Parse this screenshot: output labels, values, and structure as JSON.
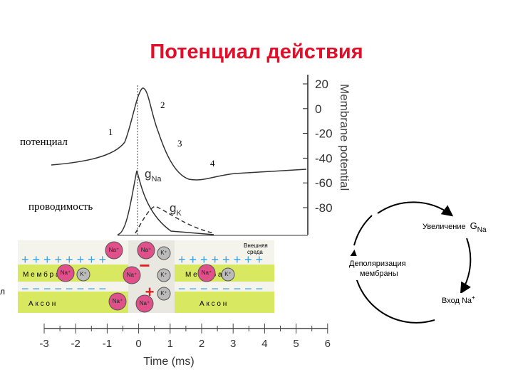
{
  "title": "Потенциал действия",
  "plot": {
    "y_axis_label": "Membrane potential",
    "y_ticks": [
      20,
      0,
      -20,
      -40,
      -60,
      -80
    ],
    "x_axis_label": "Time (ms)",
    "x_ticks": [
      -3,
      -2,
      -1,
      0,
      1,
      2,
      3,
      4,
      5,
      6
    ],
    "phase_labels": [
      "1",
      "2",
      "3",
      "4"
    ],
    "potential_label": "потенциал",
    "conductance_label": "проводимость",
    "g_na": {
      "main": "g",
      "sub": "Na"
    },
    "g_k": {
      "main": "g",
      "sub": "K"
    }
  },
  "membrane": {
    "outside_label": [
      "Внешняя",
      "среда"
    ],
    "membrane_row": "М е м б р а н а",
    "axon_row": "А к с о н",
    "plus_row": "+ + + + + + + +",
    "minus_row": "− − − − − − − −",
    "na_ion": "Na⁺",
    "k_ion": "K⁺"
  },
  "cycle": {
    "increase": "Увеличение",
    "g": "G",
    "g_sub": "Na",
    "depolarization": [
      "Деполяризация",
      "мембраны"
    ],
    "entry": "Вход Na",
    "entry_sup": "+"
  },
  "edge_fragment": "л"
}
